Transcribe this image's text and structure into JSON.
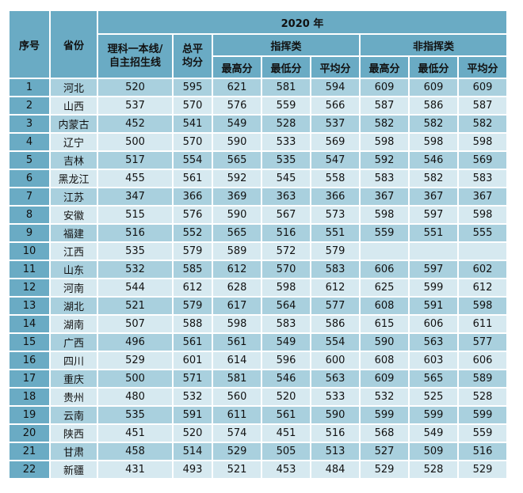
{
  "header": {
    "index_label": "序号",
    "province_label": "省份",
    "year_label": "2020 年",
    "baseline_label_1": "理科一本线/",
    "baseline_label_2": "自主招生线",
    "total_avg_label_1": "总平",
    "total_avg_label_2": "均分",
    "group_command": "指挥类",
    "group_noncommand": "非指挥类",
    "sub_max": "最高分",
    "sub_min": "最低分",
    "sub_avg": "平均分"
  },
  "colors": {
    "header_bg": "#6aabc4",
    "row_dark": "#a9d0de",
    "row_light": "#d6e9f0"
  },
  "rows": [
    {
      "idx": "1",
      "province": "河北",
      "line": "520",
      "avg": "595",
      "cmd_max": "621",
      "cmd_min": "581",
      "cmd_avg": "594",
      "non_max": "609",
      "non_min": "609",
      "non_avg": "609"
    },
    {
      "idx": "2",
      "province": "山西",
      "line": "537",
      "avg": "570",
      "cmd_max": "576",
      "cmd_min": "559",
      "cmd_avg": "566",
      "non_max": "587",
      "non_min": "586",
      "non_avg": "587"
    },
    {
      "idx": "3",
      "province": "内蒙古",
      "line": "452",
      "avg": "541",
      "cmd_max": "549",
      "cmd_min": "528",
      "cmd_avg": "537",
      "non_max": "582",
      "non_min": "582",
      "non_avg": "582"
    },
    {
      "idx": "4",
      "province": "辽宁",
      "line": "500",
      "avg": "570",
      "cmd_max": "590",
      "cmd_min": "533",
      "cmd_avg": "569",
      "non_max": "598",
      "non_min": "598",
      "non_avg": "598"
    },
    {
      "idx": "5",
      "province": "吉林",
      "line": "517",
      "avg": "554",
      "cmd_max": "565",
      "cmd_min": "535",
      "cmd_avg": "547",
      "non_max": "592",
      "non_min": "546",
      "non_avg": "569"
    },
    {
      "idx": "6",
      "province": "黑龙江",
      "line": "455",
      "avg": "561",
      "cmd_max": "592",
      "cmd_min": "545",
      "cmd_avg": "558",
      "non_max": "583",
      "non_min": "582",
      "non_avg": "583"
    },
    {
      "idx": "7",
      "province": "江苏",
      "line": "347",
      "avg": "366",
      "cmd_max": "369",
      "cmd_min": "363",
      "cmd_avg": "366",
      "non_max": "367",
      "non_min": "367",
      "non_avg": "367"
    },
    {
      "idx": "8",
      "province": "安徽",
      "line": "515",
      "avg": "576",
      "cmd_max": "590",
      "cmd_min": "567",
      "cmd_avg": "573",
      "non_max": "598",
      "non_min": "597",
      "non_avg": "598"
    },
    {
      "idx": "9",
      "province": "福建",
      "line": "516",
      "avg": "552",
      "cmd_max": "565",
      "cmd_min": "516",
      "cmd_avg": "551",
      "non_max": "559",
      "non_min": "551",
      "non_avg": "555"
    },
    {
      "idx": "10",
      "province": "江西",
      "line": "535",
      "avg": "579",
      "cmd_max": "589",
      "cmd_min": "572",
      "cmd_avg": "579",
      "non_max": "",
      "non_min": "",
      "non_avg": ""
    },
    {
      "idx": "11",
      "province": "山东",
      "line": "532",
      "avg": "585",
      "cmd_max": "612",
      "cmd_min": "570",
      "cmd_avg": "583",
      "non_max": "606",
      "non_min": "597",
      "non_avg": "602"
    },
    {
      "idx": "12",
      "province": "河南",
      "line": "544",
      "avg": "612",
      "cmd_max": "628",
      "cmd_min": "598",
      "cmd_avg": "612",
      "non_max": "625",
      "non_min": "599",
      "non_avg": "612"
    },
    {
      "idx": "13",
      "province": "湖北",
      "line": "521",
      "avg": "579",
      "cmd_max": "617",
      "cmd_min": "564",
      "cmd_avg": "577",
      "non_max": "608",
      "non_min": "591",
      "non_avg": "598"
    },
    {
      "idx": "14",
      "province": "湖南",
      "line": "507",
      "avg": "588",
      "cmd_max": "598",
      "cmd_min": "583",
      "cmd_avg": "586",
      "non_max": "615",
      "non_min": "606",
      "non_avg": "611"
    },
    {
      "idx": "15",
      "province": "广西",
      "line": "496",
      "avg": "561",
      "cmd_max": "561",
      "cmd_min": "549",
      "cmd_avg": "554",
      "non_max": "590",
      "non_min": "563",
      "non_avg": "577"
    },
    {
      "idx": "16",
      "province": "四川",
      "line": "529",
      "avg": "601",
      "cmd_max": "614",
      "cmd_min": "596",
      "cmd_avg": "600",
      "non_max": "608",
      "non_min": "603",
      "non_avg": "606"
    },
    {
      "idx": "17",
      "province": "重庆",
      "line": "500",
      "avg": "571",
      "cmd_max": "581",
      "cmd_min": "546",
      "cmd_avg": "563",
      "non_max": "609",
      "non_min": "565",
      "non_avg": "589"
    },
    {
      "idx": "18",
      "province": "贵州",
      "line": "480",
      "avg": "532",
      "cmd_max": "560",
      "cmd_min": "520",
      "cmd_avg": "533",
      "non_max": "532",
      "non_min": "525",
      "non_avg": "528"
    },
    {
      "idx": "19",
      "province": "云南",
      "line": "535",
      "avg": "591",
      "cmd_max": "611",
      "cmd_min": "561",
      "cmd_avg": "590",
      "non_max": "599",
      "non_min": "599",
      "non_avg": "599"
    },
    {
      "idx": "20",
      "province": "陕西",
      "line": "451",
      "avg": "520",
      "cmd_max": "574",
      "cmd_min": "451",
      "cmd_avg": "516",
      "non_max": "568",
      "non_min": "549",
      "non_avg": "559"
    },
    {
      "idx": "21",
      "province": "甘肃",
      "line": "458",
      "avg": "514",
      "cmd_max": "529",
      "cmd_min": "505",
      "cmd_avg": "513",
      "non_max": "527",
      "non_min": "509",
      "non_avg": "516"
    },
    {
      "idx": "22",
      "province": "新疆",
      "line": "431",
      "avg": "493",
      "cmd_max": "521",
      "cmd_min": "453",
      "cmd_avg": "484",
      "non_max": "529",
      "non_min": "528",
      "non_avg": "529"
    }
  ]
}
